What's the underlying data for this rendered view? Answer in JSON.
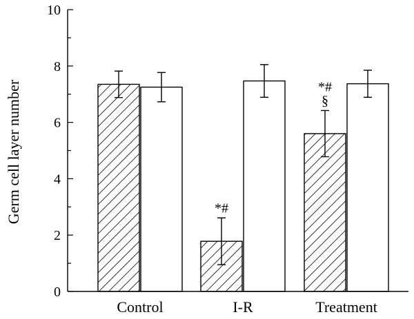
{
  "chart_data": {
    "type": "bar",
    "ylabel": "Germ cell layer number",
    "ylim": [
      0,
      10
    ],
    "yticks": [
      0,
      2,
      4,
      6,
      8,
      10
    ],
    "categories": [
      "Control",
      "I-R",
      "Treatment"
    ],
    "series": [
      {
        "values": [
          7.35,
          1.78,
          5.6
        ],
        "errors": [
          0.47,
          0.83,
          0.82
        ],
        "fill": "hatched"
      },
      {
        "values": [
          7.25,
          7.47,
          7.37
        ],
        "errors": [
          0.52,
          0.58,
          0.48
        ],
        "fill": "white"
      }
    ],
    "annotations": [
      {
        "category": "I-R",
        "series": 0,
        "lines": [
          "*#"
        ]
      },
      {
        "category": "Treatment",
        "series": 0,
        "lines": [
          "*#",
          "§"
        ]
      }
    ],
    "grid": false,
    "colors": {
      "stroke": "#000000",
      "background": "#ffffff"
    }
  }
}
